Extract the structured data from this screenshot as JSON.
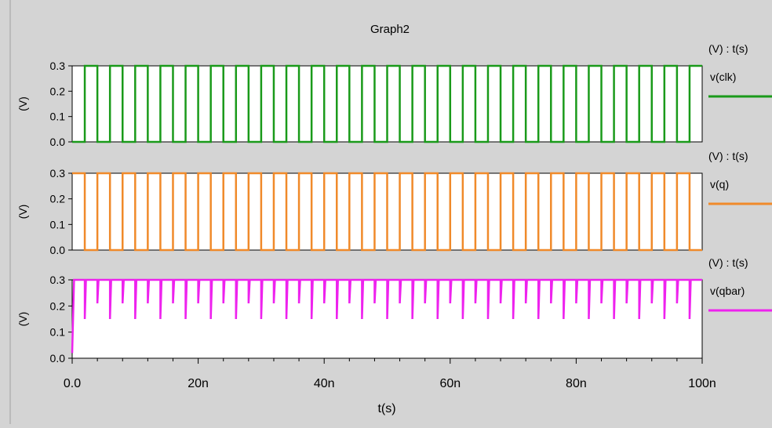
{
  "window": {
    "title": "Graph2"
  },
  "chart_data": [
    {
      "type": "line",
      "title": "Graph2",
      "xlabel": "t(s)",
      "ylabel": "(V)",
      "unit_label": "(V) : t(s)",
      "color": "#1a9a1a",
      "xlim": [
        0,
        100
      ],
      "ylim": [
        0,
        0.3
      ],
      "yticks": [
        "0.0",
        "0.1",
        "0.2",
        "0.3"
      ],
      "series": [
        {
          "name": "v(clk)",
          "waveform": "square",
          "high": 0.3,
          "low": 0.0,
          "period_ns": 4,
          "duty": 0.5,
          "start_low": true,
          "t_start_ns": 0,
          "t_end_ns": 100
        }
      ]
    },
    {
      "type": "line",
      "ylabel": "(V)",
      "unit_label": "(V) : t(s)",
      "color": "#f08a2a",
      "xlim": [
        0,
        100
      ],
      "ylim": [
        0,
        0.3
      ],
      "yticks": [
        "0.0",
        "0.1",
        "0.2",
        "0.3"
      ],
      "series": [
        {
          "name": "v(q)",
          "waveform": "square",
          "high": 0.3,
          "low": 0.0,
          "period_ns": 4,
          "duty": 0.5,
          "start_low": false,
          "t_start_ns": 0,
          "t_end_ns": 100
        }
      ]
    },
    {
      "type": "line",
      "ylabel": "(V)",
      "unit_label": "(V) : t(s)",
      "color": "#ee22ee",
      "xlim": [
        0,
        100
      ],
      "ylim": [
        0,
        0.3
      ],
      "yticks": [
        "0.0",
        "0.1",
        "0.2",
        "0.3"
      ],
      "series": [
        {
          "name": "v(qbar)",
          "waveform": "glitch",
          "high": 0.3,
          "start_v": 0.02,
          "glitch_period_ns": 2,
          "glitch_levels": [
            0.15,
            0.21
          ],
          "t_start_ns": 0,
          "t_end_ns": 100
        }
      ]
    }
  ],
  "x_axis": {
    "label": "t(s)",
    "ticks": [
      {
        "value": 0,
        "label": "0.0"
      },
      {
        "value": 20,
        "label": "20n"
      },
      {
        "value": 40,
        "label": "40n"
      },
      {
        "value": 60,
        "label": "60n"
      },
      {
        "value": 80,
        "label": "80n"
      },
      {
        "value": 100,
        "label": "100n"
      }
    ]
  }
}
